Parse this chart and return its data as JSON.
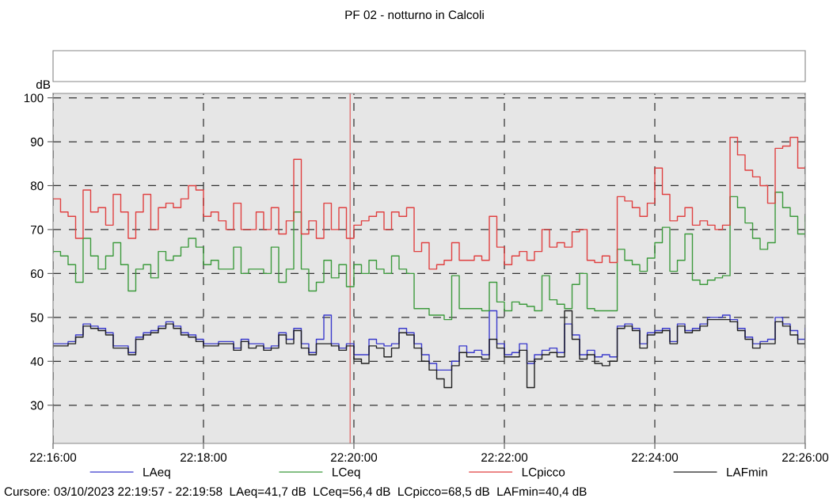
{
  "chart_data": {
    "type": "step",
    "title": "PF 02 - notturno in Calcoli",
    "ylabel": "dB",
    "annotations": [
      "Cursore: 03/10/2023 22:19:57 - 22:19:58  LAeq=41,7 dB  LCeq=56,4 dB  LCpicco=68,5 dB  LAFmin=40,4 dB"
    ],
    "x": [
      22.26667,
      22.26833,
      22.27,
      22.27167,
      22.27333,
      22.275,
      22.27667,
      22.27833,
      22.28,
      22.28167,
      22.28333,
      22.285,
      22.28667,
      22.28833,
      22.29,
      22.29167,
      22.29333,
      22.295,
      22.29667,
      22.29833,
      22.3,
      22.30167,
      22.30333,
      22.305,
      22.30667,
      22.30833,
      22.31,
      22.31167,
      22.31333,
      22.315,
      22.31667,
      22.31833,
      22.32,
      22.32167,
      22.32333,
      22.325,
      22.32667,
      22.32833,
      22.33,
      22.33167,
      22.33333,
      22.335,
      22.33667,
      22.33833,
      22.34,
      22.34167,
      22.34333,
      22.345,
      22.34667,
      22.34833,
      22.35,
      22.35167,
      22.35333,
      22.355,
      22.35667,
      22.35833,
      22.36,
      22.36167,
      22.36333,
      22.365,
      22.36667,
      22.36833,
      22.37,
      22.37167,
      22.37333,
      22.375,
      22.37667,
      22.37833,
      22.38,
      22.38167,
      22.38333,
      22.385,
      22.38667,
      22.38833,
      22.39,
      22.39167,
      22.39333,
      22.395,
      22.39667,
      22.39833,
      22.4,
      22.40167,
      22.40333,
      22.405,
      22.40667,
      22.40833,
      22.41,
      22.41167,
      22.41333,
      22.415,
      22.41667,
      22.41833,
      22.42,
      22.42167,
      22.42333,
      22.425,
      22.42667,
      22.42833,
      22.43,
      22.43167,
      22.43333
    ],
    "series": [
      {
        "name": "LAeq",
        "color": "#3a3acc",
        "values": [
          44,
          44,
          44.5,
          46,
          48.5,
          48,
          47.5,
          46.5,
          43.5,
          43.5,
          42,
          45.5,
          46.5,
          47,
          48,
          49,
          48,
          46.5,
          46,
          45,
          44,
          44,
          44.5,
          44.5,
          43,
          45,
          44,
          44,
          43,
          43.5,
          46.5,
          45,
          47.5,
          44,
          42,
          45,
          50.5,
          44,
          43,
          44,
          41.5,
          41.5,
          45,
          44,
          43.5,
          44,
          47.5,
          46.5,
          44,
          41.5,
          39.5,
          38,
          38,
          40,
          43.5,
          42,
          42.5,
          41.5,
          51.5,
          44,
          41.5,
          42,
          44,
          39.5,
          41.5,
          42.5,
          43,
          42,
          48.5,
          46,
          41.5,
          42.5,
          41,
          41.5,
          41,
          48,
          48.5,
          47.5,
          44,
          46.5,
          47,
          47.5,
          44.5,
          48.5,
          47,
          47.5,
          48.5,
          50,
          50,
          50.5,
          49.5,
          47.5,
          45.5,
          44,
          44.5,
          45,
          50,
          48.5,
          47,
          45,
          47.5
        ]
      },
      {
        "name": "LCeq",
        "color": "#3c9a3c",
        "values": [
          65,
          64,
          62,
          58,
          68,
          64,
          61,
          64,
          67,
          62,
          56,
          61,
          62,
          59,
          65,
          63,
          64,
          66,
          68,
          66,
          62,
          63,
          61,
          61,
          66,
          60,
          61,
          61,
          60,
          66,
          58,
          61,
          74,
          61,
          56,
          58,
          63,
          59,
          62,
          57,
          62,
          60,
          63,
          61,
          60,
          64,
          61,
          60,
          52,
          52,
          50.5,
          50.5,
          49.5,
          59.5,
          52,
          52,
          52,
          51.5,
          58,
          53.5,
          51.5,
          53.5,
          53,
          52.5,
          51.5,
          59.5,
          54,
          53,
          52,
          57.5,
          60,
          52,
          51.5,
          51.5,
          51.5,
          65.5,
          63,
          62,
          60.5,
          63.5,
          67,
          70.5,
          60.5,
          63,
          69,
          58.5,
          57.5,
          58.5,
          59,
          59.5,
          77.5,
          75,
          71.5,
          68,
          65.5,
          67,
          78.5,
          75,
          73,
          69,
          73
        ]
      },
      {
        "name": "LCpicco",
        "color": "#e04040",
        "values": [
          77,
          74,
          73,
          68,
          79,
          74,
          75,
          71,
          78,
          74,
          68,
          74,
          78,
          70,
          75,
          76,
          75,
          77,
          80,
          79,
          73,
          74,
          72,
          70,
          76,
          70,
          70,
          74,
          70,
          75,
          69,
          72,
          86,
          69,
          72,
          68,
          76,
          70,
          75,
          68,
          71,
          72,
          73,
          74,
          70,
          74,
          73,
          75,
          65,
          67,
          61,
          62,
          63,
          67,
          63,
          63,
          64,
          63,
          73,
          66,
          62,
          64,
          65,
          63,
          65,
          70,
          66,
          67,
          66,
          69.5,
          70,
          63,
          62.5,
          64,
          62.5,
          77.5,
          76.5,
          75,
          73,
          76,
          84,
          78,
          72,
          73,
          75,
          71,
          72,
          71,
          70,
          71,
          91,
          87,
          83.5,
          82,
          80,
          76,
          88.5,
          89,
          91,
          84,
          84
        ]
      },
      {
        "name": "LAFmin",
        "color": "#202020",
        "values": [
          43.5,
          43.5,
          44,
          45.5,
          48,
          47.5,
          47,
          46,
          43,
          43,
          41.5,
          45,
          46,
          46.5,
          47.5,
          48.5,
          47.5,
          46,
          45.5,
          44.5,
          43.5,
          43.5,
          44,
          44,
          42.5,
          44.5,
          43,
          43.5,
          42.5,
          43,
          46,
          44,
          47,
          43,
          41.5,
          44,
          44,
          43.5,
          42.5,
          43.5,
          40.5,
          39.5,
          43.5,
          43,
          41,
          43,
          46.5,
          46,
          43,
          40,
          38,
          36,
          34,
          39,
          42,
          41,
          41,
          40.5,
          45,
          43,
          41,
          41,
          42.5,
          34,
          40.5,
          41.5,
          42,
          41,
          51.5,
          45,
          40.5,
          41.5,
          39.5,
          39,
          40,
          47.5,
          48,
          47,
          43,
          46,
          46.5,
          47,
          44,
          48,
          46.5,
          47,
          48,
          49.5,
          49.5,
          49.5,
          49,
          47,
          45,
          43,
          44,
          44,
          49,
          48,
          46,
          44,
          46.5
        ]
      }
    ],
    "xlim": [
      22.26667,
      22.43333
    ],
    "xticks": [
      {
        "value": 22.26667,
        "label": "22:16:00"
      },
      {
        "value": 22.3,
        "label": "22:18:00"
      },
      {
        "value": 22.33333,
        "label": "22:20:00"
      },
      {
        "value": 22.36667,
        "label": "22:22:00"
      },
      {
        "value": 22.4,
        "label": "22:24:00"
      },
      {
        "value": 22.43333,
        "label": "22:26:00"
      }
    ],
    "ylim": [
      21.3,
      101
    ],
    "yticks": [
      30,
      40,
      50,
      60,
      70,
      80,
      90,
      100
    ],
    "ref_lines": [
      {
        "axis": "x",
        "value": 22.3325,
        "color": "#e07070"
      }
    ],
    "grid": true,
    "legend": "bottom",
    "line_style": "solid",
    "marker": "none"
  }
}
